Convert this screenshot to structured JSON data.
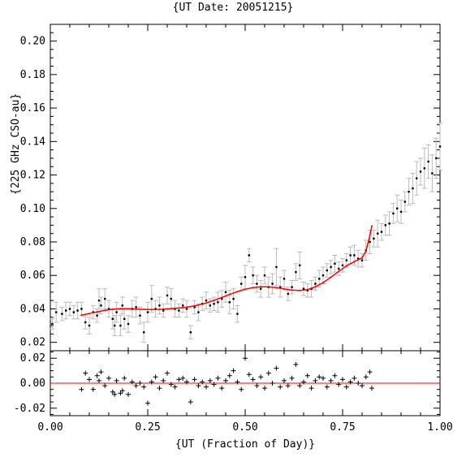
{
  "chart_data": [
    {
      "type": "scatter",
      "title": "{UT Date: 20051215}",
      "xlabel": "",
      "ylabel": "{225 GHz CSO-au}",
      "xlim": [
        0.0,
        1.0
      ],
      "ylim": [
        0.015,
        0.21
      ],
      "xticks": [
        "0.00",
        "0.25",
        "0.50",
        "0.75",
        "1.00"
      ],
      "xtick_values": [
        0.0,
        0.25,
        0.5,
        0.75,
        1.0
      ],
      "yticks": [
        "0.02",
        "0.04",
        "0.06",
        "0.08",
        "0.10",
        "0.12",
        "0.14",
        "0.16",
        "0.18",
        "0.20"
      ],
      "ytick_values": [
        0.02,
        0.04,
        0.06,
        0.08,
        0.1,
        0.12,
        0.14,
        0.16,
        0.18,
        0.2
      ],
      "colors": {
        "points": "#000000",
        "errorbars": "#bbbbbb",
        "fit": "#ff0000"
      },
      "series": [
        {
          "kind": "points_with_errorbars",
          "x": [
            0.005,
            0.015,
            0.03,
            0.04,
            0.05,
            0.06,
            0.07,
            0.08,
            0.09,
            0.1,
            0.11,
            0.12,
            0.125,
            0.13,
            0.14,
            0.15,
            0.16,
            0.165,
            0.17,
            0.18,
            0.185,
            0.19,
            0.2,
            0.21,
            0.22,
            0.23,
            0.24,
            0.25,
            0.26,
            0.27,
            0.28,
            0.29,
            0.3,
            0.31,
            0.32,
            0.33,
            0.34,
            0.35,
            0.36,
            0.37,
            0.38,
            0.39,
            0.4,
            0.41,
            0.42,
            0.43,
            0.44,
            0.45,
            0.46,
            0.47,
            0.48,
            0.49,
            0.5,
            0.51,
            0.52,
            0.53,
            0.54,
            0.55,
            0.56,
            0.57,
            0.58,
            0.59,
            0.6,
            0.61,
            0.62,
            0.63,
            0.64,
            0.65,
            0.66,
            0.67,
            0.68,
            0.69,
            0.7,
            0.71,
            0.72,
            0.73,
            0.74,
            0.75,
            0.76,
            0.77,
            0.78,
            0.79,
            0.8,
            0.81,
            0.82,
            0.83,
            0.84,
            0.85,
            0.86,
            0.87,
            0.88,
            0.89,
            0.9,
            0.91,
            0.92,
            0.93,
            0.94,
            0.95,
            0.96,
            0.97,
            0.98,
            0.99,
            1.0
          ],
          "y": [
            0.031,
            0.038,
            0.037,
            0.039,
            0.04,
            0.038,
            0.039,
            0.04,
            0.032,
            0.03,
            0.038,
            0.036,
            0.045,
            0.042,
            0.046,
            0.04,
            0.034,
            0.03,
            0.038,
            0.03,
            0.042,
            0.034,
            0.031,
            0.04,
            0.041,
            0.036,
            0.026,
            0.038,
            0.046,
            0.04,
            0.042,
            0.039,
            0.048,
            0.046,
            0.04,
            0.039,
            0.042,
            0.04,
            0.026,
            0.041,
            0.038,
            0.043,
            0.045,
            0.042,
            0.043,
            0.044,
            0.046,
            0.05,
            0.044,
            0.046,
            0.037,
            0.055,
            0.059,
            0.072,
            0.06,
            0.055,
            0.052,
            0.06,
            0.053,
            0.055,
            0.065,
            0.053,
            0.058,
            0.049,
            0.053,
            0.062,
            0.066,
            0.052,
            0.051,
            0.052,
            0.055,
            0.058,
            0.06,
            0.063,
            0.065,
            0.067,
            0.064,
            0.066,
            0.069,
            0.072,
            0.072,
            0.07,
            0.069,
            0.075,
            0.08,
            0.082,
            0.085,
            0.086,
            0.09,
            0.091,
            0.097,
            0.1,
            0.098,
            0.104,
            0.11,
            0.112,
            0.118,
            0.122,
            0.124,
            0.128,
            0.121,
            0.13,
            0.137
          ],
          "err": [
            0.003,
            0.006,
            0.004,
            0.005,
            0.004,
            0.004,
            0.005,
            0.004,
            0.004,
            0.005,
            0.004,
            0.004,
            0.007,
            0.005,
            0.006,
            0.005,
            0.006,
            0.006,
            0.006,
            0.006,
            0.005,
            0.006,
            0.005,
            0.005,
            0.006,
            0.005,
            0.006,
            0.006,
            0.008,
            0.005,
            0.005,
            0.004,
            0.005,
            0.006,
            0.005,
            0.004,
            0.004,
            0.005,
            0.004,
            0.004,
            0.005,
            0.004,
            0.005,
            0.004,
            0.004,
            0.006,
            0.005,
            0.006,
            0.007,
            0.006,
            0.005,
            0.004,
            0.007,
            0.004,
            0.005,
            0.005,
            0.005,
            0.005,
            0.006,
            0.006,
            0.011,
            0.006,
            0.005,
            0.004,
            0.004,
            0.005,
            0.008,
            0.004,
            0.004,
            0.005,
            0.004,
            0.005,
            0.005,
            0.004,
            0.004,
            0.005,
            0.004,
            0.004,
            0.004,
            0.005,
            0.006,
            0.005,
            0.004,
            0.006,
            0.007,
            0.005,
            0.008,
            0.005,
            0.006,
            0.007,
            0.006,
            0.008,
            0.007,
            0.006,
            0.008,
            0.009,
            0.01,
            0.008,
            0.012,
            0.01,
            0.011,
            0.012,
            0.014
          ]
        },
        {
          "kind": "fit_curve",
          "x": [
            0.08,
            0.1,
            0.12,
            0.14,
            0.16,
            0.18,
            0.2,
            0.22,
            0.24,
            0.26,
            0.28,
            0.3,
            0.32,
            0.34,
            0.36,
            0.38,
            0.4,
            0.42,
            0.44,
            0.46,
            0.48,
            0.5,
            0.52,
            0.54,
            0.56,
            0.58,
            0.6,
            0.62,
            0.64,
            0.66,
            0.68,
            0.7,
            0.72,
            0.74,
            0.76,
            0.78,
            0.8,
            0.81,
            0.82,
            0.825
          ],
          "y": [
            0.0363,
            0.0372,
            0.0382,
            0.0391,
            0.0398,
            0.0401,
            0.0401,
            0.0399,
            0.0397,
            0.0396,
            0.0397,
            0.04,
            0.0403,
            0.0407,
            0.0414,
            0.0423,
            0.0435,
            0.0451,
            0.0468,
            0.0486,
            0.0503,
            0.0517,
            0.0527,
            0.0532,
            0.0532,
            0.0527,
            0.0519,
            0.0512,
            0.051,
            0.0515,
            0.0532,
            0.0557,
            0.0589,
            0.0624,
            0.0657,
            0.0682,
            0.0705,
            0.0745,
            0.0838,
            0.0895
          ]
        }
      ]
    },
    {
      "type": "scatter",
      "title": "",
      "xlabel": "{UT (Fraction of Day)}",
      "ylabel": "",
      "xlim": [
        0.0,
        1.0
      ],
      "ylim": [
        -0.026,
        0.026
      ],
      "yticks": [
        "0.02",
        "0.00",
        "-0.02"
      ],
      "ytick_values": [
        0.02,
        0.0,
        -0.02
      ],
      "colors": {
        "points": "#000000",
        "zero_line": "#ff0000"
      },
      "series": [
        {
          "kind": "residuals",
          "x": [
            0.08,
            0.09,
            0.1,
            0.11,
            0.12,
            0.125,
            0.13,
            0.14,
            0.15,
            0.16,
            0.165,
            0.17,
            0.18,
            0.185,
            0.19,
            0.2,
            0.21,
            0.22,
            0.23,
            0.24,
            0.25,
            0.26,
            0.27,
            0.28,
            0.29,
            0.3,
            0.31,
            0.32,
            0.33,
            0.34,
            0.35,
            0.36,
            0.37,
            0.38,
            0.39,
            0.4,
            0.41,
            0.42,
            0.43,
            0.44,
            0.45,
            0.46,
            0.47,
            0.48,
            0.49,
            0.5,
            0.51,
            0.52,
            0.53,
            0.54,
            0.55,
            0.56,
            0.57,
            0.58,
            0.59,
            0.6,
            0.61,
            0.62,
            0.63,
            0.64,
            0.65,
            0.66,
            0.67,
            0.68,
            0.69,
            0.7,
            0.71,
            0.72,
            0.73,
            0.74,
            0.75,
            0.76,
            0.77,
            0.78,
            0.79,
            0.8,
            0.81,
            0.82,
            0.825
          ],
          "y": [
            -0.005,
            0.008,
            0.003,
            -0.005,
            0.006,
            0.002,
            0.009,
            -0.002,
            0.004,
            -0.007,
            -0.009,
            0.002,
            -0.008,
            -0.006,
            0.004,
            -0.009,
            0.001,
            -0.002,
            0.0,
            -0.003,
            -0.016,
            0.001,
            0.005,
            -0.004,
            0.002,
            0.008,
            -0.001,
            -0.003,
            0.003,
            0.004,
            0.001,
            -0.015,
            0.003,
            -0.002,
            0.001,
            -0.003,
            0.002,
            -0.001,
            0.004,
            -0.004,
            0.002,
            0.006,
            0.01,
            0.001,
            -0.005,
            0.02,
            0.007,
            0.003,
            -0.002,
            0.005,
            -0.004,
            0.008,
            0.0,
            0.012,
            -0.003,
            0.002,
            -0.002,
            0.004,
            0.015,
            -0.002,
            0.001,
            0.006,
            -0.004,
            0.002,
            0.005,
            0.004,
            -0.003,
            0.002,
            0.006,
            -0.001,
            0.003,
            -0.003,
            0.001,
            0.004,
            0.0,
            -0.002,
            0.005,
            0.009,
            -0.004
          ]
        }
      ]
    }
  ]
}
